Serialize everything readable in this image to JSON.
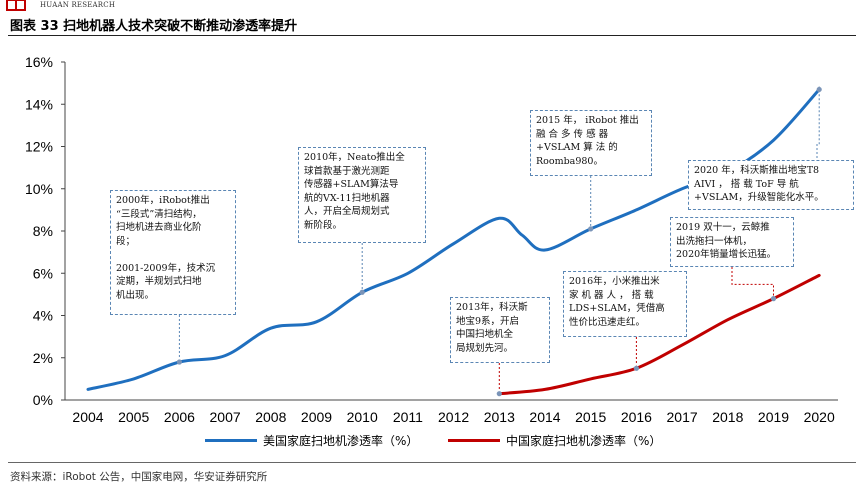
{
  "header": {
    "brand": "HUAAN RESEARCH",
    "title": "图表 33  扫地机器人技术突破不断推动渗透率提升",
    "logo_color": "#c00000"
  },
  "source": "资料来源：iRobot 公告，中国家电网，华安证券研究所",
  "chart_data": {
    "type": "line",
    "title": "",
    "x": [
      2004,
      2005,
      2006,
      2007,
      2008,
      2009,
      2010,
      2011,
      2012,
      2013,
      2014,
      2015,
      2016,
      2017,
      2018,
      2019,
      2020
    ],
    "x_tick_labels": [
      "2004",
      "2005",
      "2006",
      "2007",
      "2008",
      "2009",
      "2010",
      "2011",
      "2012",
      "2013",
      "2014",
      "2015",
      "2016",
      "2017",
      "2018",
      "2019",
      "2020"
    ],
    "y_tick_labels": [
      "0%",
      "2%",
      "4%",
      "6%",
      "8%",
      "10%",
      "12%",
      "14%",
      "16%"
    ],
    "ylim": [
      0,
      16
    ],
    "series": [
      {
        "name": "美国家庭扫地机渗透率（%）",
        "color": "#1f6fbf",
        "x": [
          2004,
          2005,
          2006,
          2007,
          2008,
          2009,
          2010,
          2011,
          2012,
          2013,
          2013.5,
          2014,
          2015,
          2016,
          2017,
          2018,
          2019,
          2020
        ],
        "values": [
          0.5,
          1.0,
          1.8,
          2.1,
          3.4,
          3.7,
          5.1,
          6.0,
          7.4,
          8.6,
          7.8,
          7.1,
          8.1,
          9.0,
          10.0,
          10.8,
          12.3,
          14.7
        ]
      },
      {
        "name": "中国家庭扫地机渗透率（%）",
        "color": "#c00000",
        "x": [
          2013,
          2014,
          2015,
          2016,
          2017,
          2018,
          2019,
          2020
        ],
        "values": [
          0.3,
          0.5,
          1.0,
          1.5,
          2.6,
          3.8,
          4.8,
          5.9
        ]
      }
    ],
    "annotations": [
      {
        "year": 2006,
        "series": 0,
        "text": "2000年，iRobot推出\n“三段式”清扫结构，\n扫地机进去商业化阶\n段；\n\n2001-2009年，技术沉\n淀期，半规划式扫地\n机出现。"
      },
      {
        "year": 2010,
        "series": 0,
        "text": "2010年，Neato推出全\n球首款基于激光测距\n传感器+SLAM算法导\n航的VX-11扫地机器\n人，开启全局规划式\n新阶段。"
      },
      {
        "year": 2015,
        "series": 0,
        "text": "2015 年， iRobot 推出\n融 合 多 传 感 器\n+VSLAM  算  法  的\nRoomba980。"
      },
      {
        "year": 2020,
        "series": 0,
        "text": "2020 年，科沃斯推出地宝T8\nAIVI ， 搭 载 ToF 导 航\n+VSLAM，升级智能化水平。"
      },
      {
        "year": 2013,
        "series": 1,
        "text": "2013年，科沃斯\n地宝9系，开启\n中国扫地机全\n局规划先河。"
      },
      {
        "year": 2016,
        "series": 1,
        "text": "2016年，小米推出米\n家 机 器 人 ， 搭 载\nLDS+SLAM，凭借高\n性价比迅速走红。"
      },
      {
        "year": 2019,
        "series": 1,
        "text": "2019 双十一，云鲸推\n出洗拖扫一体机，\n2020年销量增长迅猛。"
      }
    ]
  }
}
